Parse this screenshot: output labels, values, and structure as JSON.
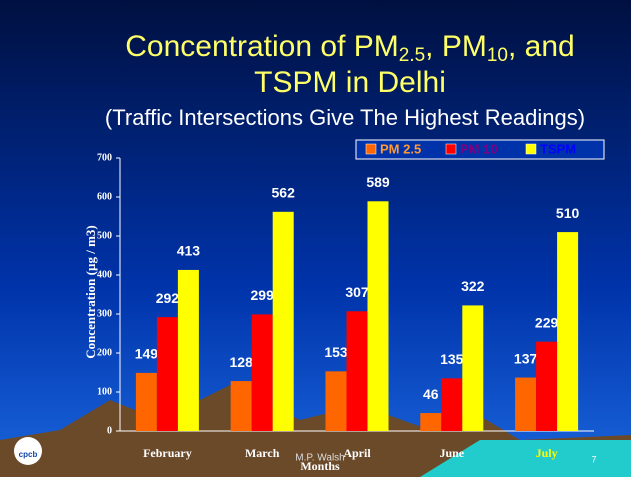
{
  "chart_data": {
    "type": "bar",
    "title": [
      "Concentration of PM",
      "2.5",
      ", PM",
      "10",
      ", and",
      "TSPM in Delhi"
    ],
    "subtitle": "(Traffic Intersections Give The Highest Readings)",
    "y_label": "Concentration (µg / m3)",
    "x_label": "Months",
    "footer": "M.P. Walsh",
    "page_number": "7",
    "logo_text": "cpcb",
    "categories": [
      "February",
      "March",
      "April",
      "June",
      "July"
    ],
    "series": [
      {
        "name": "PM 2.5",
        "color": "#ff6600",
        "label_color": "#ff9933",
        "values": [
          149,
          128,
          153,
          46,
          137
        ]
      },
      {
        "name": "PM 10",
        "color": "#ff0000",
        "label_color": "#800080",
        "values": [
          292,
          299,
          307,
          135,
          229
        ]
      },
      {
        "name": "TSPM",
        "color": "#ffff00",
        "label_color": "#0000ff",
        "values": [
          413,
          562,
          589,
          322,
          510
        ]
      }
    ],
    "ylim": [
      0,
      700
    ],
    "yticks": [
      0,
      100,
      200,
      300,
      400,
      500,
      600,
      700
    ]
  }
}
